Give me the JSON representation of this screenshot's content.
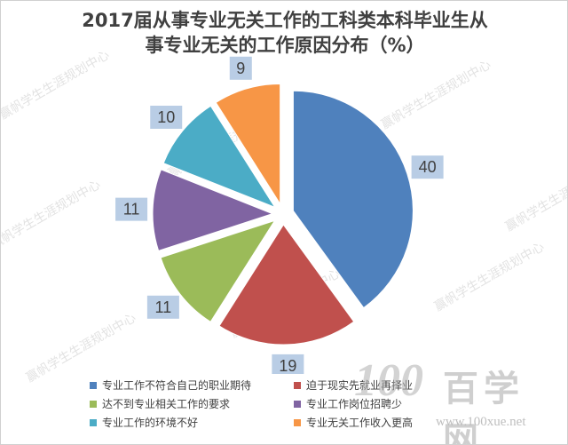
{
  "chart_data": {
    "type": "pie",
    "title_lines": [
      "2017届从事专业无关工作的工科类本科毕业生从",
      "事专业无关的工作原因分布（%）"
    ],
    "categories": [
      "专业工作不符合自己的职业期待",
      "迫于现实先就业再择业",
      "达不到专业相关工作的要求",
      "专业工作岗位招聘少",
      "专业工作的环境不好",
      "专业无关工作收入更高"
    ],
    "values": [
      40,
      19,
      11,
      11,
      10,
      9
    ],
    "colors": [
      "#4f81bd",
      "#c0504d",
      "#9bbb59",
      "#8064a2",
      "#4bacc6",
      "#f79646"
    ],
    "legend_position": "bottom",
    "exploded": true
  },
  "watermark": {
    "text": "赢帆学生生涯规划中心"
  },
  "brand": {
    "number": "100",
    "name": "百学网",
    "url": "www.100xue.net"
  }
}
